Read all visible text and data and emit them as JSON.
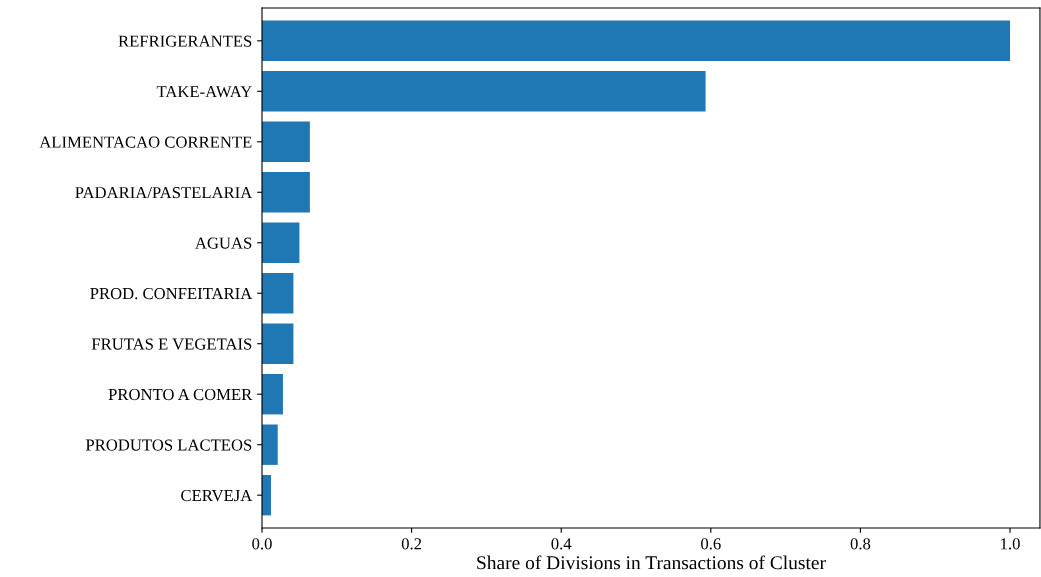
{
  "chart_data": {
    "type": "bar",
    "orientation": "horizontal",
    "xlabel": "Share of Divisions in Transactions of Cluster",
    "categories": [
      "REFRIGERANTES",
      "TAKE-AWAY",
      "ALIMENTACAO CORRENTE",
      "PADARIA/PASTELARIA",
      "AGUAS",
      "PROD. CONFEITARIA",
      "FRUTAS E VEGETAIS",
      "PRONTO A COMER",
      "PRODUTOS LACTEOS",
      "CERVEJA"
    ],
    "values": [
      1.0,
      0.593,
      0.064,
      0.064,
      0.05,
      0.042,
      0.042,
      0.028,
      0.021,
      0.012
    ],
    "color": "#1f77b4",
    "xlim": [
      0,
      1.04
    ],
    "xticks": [
      {
        "value": 0,
        "label": "0.0"
      },
      0.2,
      0.4,
      0.6,
      0.8,
      {
        "value": 1,
        "label": "1.0"
      }
    ],
    "grid": false
  }
}
